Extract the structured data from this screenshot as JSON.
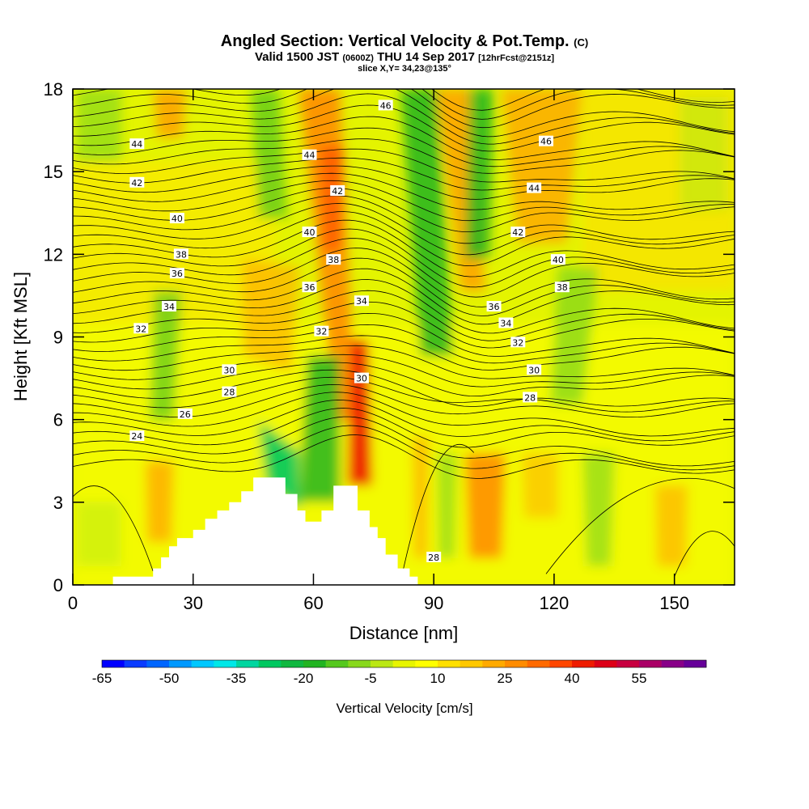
{
  "title": {
    "line1_main": "Angled Section: Vertical Velocity & Pot.Temp.",
    "line1_unit": "(C)",
    "line2_a": "Valid 1500 JST",
    "line2_b": "(0600Z)",
    "line2_c": "THU 14 Sep 2017",
    "line2_d": "[12hrFcst@2151z]",
    "line3": "slice X,Y= 34,23@135°"
  },
  "chart_data": {
    "type": "heatmap",
    "xlabel": "Distance [nm]",
    "ylabel": "Height [Kft MSL]",
    "xlim": [
      0,
      165
    ],
    "ylim": [
      0,
      18
    ],
    "xticks": [
      0,
      30,
      60,
      90,
      120,
      150
    ],
    "yticks": [
      0,
      3,
      6,
      9,
      12,
      15,
      18
    ],
    "colorbar": {
      "label": "Vertical Velocity [cm/s]",
      "tick_labels": [
        "-65",
        "-50",
        "-35",
        "-20",
        "-5",
        "10",
        "25",
        "40",
        "55"
      ],
      "levels": [
        -65,
        -60,
        -55,
        -50,
        -45,
        -40,
        -35,
        -30,
        -25,
        -20,
        -15,
        -10,
        -5,
        0,
        5,
        10,
        15,
        20,
        25,
        30,
        35,
        40,
        45,
        50,
        55,
        60,
        65
      ],
      "colors": [
        "#0000ff",
        "#0a3cff",
        "#0066ff",
        "#0099ff",
        "#00c8ff",
        "#00e8e8",
        "#00d6a0",
        "#00c860",
        "#10b840",
        "#22b422",
        "#55c81e",
        "#88d81c",
        "#bbe814",
        "#e8f500",
        "#ffff00",
        "#ffe000",
        "#ffc800",
        "#ffaa00",
        "#ff8c00",
        "#ff6a00",
        "#ff4600",
        "#ee1c00",
        "#dd0018",
        "#c80040",
        "#aa0066",
        "#880088",
        "#660099"
      ]
    },
    "theta_labels": [
      {
        "text": "46",
        "x": 78,
        "y": 17.4
      },
      {
        "text": "44",
        "x": 16,
        "y": 16.0
      },
      {
        "text": "44",
        "x": 59,
        "y": 15.6
      },
      {
        "text": "46",
        "x": 118,
        "y": 16.1
      },
      {
        "text": "42",
        "x": 16,
        "y": 14.6
      },
      {
        "text": "42",
        "x": 66,
        "y": 14.3
      },
      {
        "text": "44",
        "x": 115,
        "y": 14.4
      },
      {
        "text": "40",
        "x": 26,
        "y": 13.3
      },
      {
        "text": "40",
        "x": 59,
        "y": 12.8
      },
      {
        "text": "42",
        "x": 111,
        "y": 12.8
      },
      {
        "text": "38",
        "x": 27,
        "y": 12.0
      },
      {
        "text": "38",
        "x": 65,
        "y": 11.8
      },
      {
        "text": "40",
        "x": 121,
        "y": 11.8
      },
      {
        "text": "36",
        "x": 26,
        "y": 11.3
      },
      {
        "text": "36",
        "x": 59,
        "y": 10.8
      },
      {
        "text": "38",
        "x": 122,
        "y": 10.8
      },
      {
        "text": "34",
        "x": 72,
        "y": 10.3
      },
      {
        "text": "36",
        "x": 105,
        "y": 10.1
      },
      {
        "text": "34",
        "x": 24,
        "y": 10.1
      },
      {
        "text": "34",
        "x": 108,
        "y": 9.5
      },
      {
        "text": "32",
        "x": 17,
        "y": 9.3
      },
      {
        "text": "32",
        "x": 62,
        "y": 9.2
      },
      {
        "text": "32",
        "x": 111,
        "y": 8.8
      },
      {
        "text": "30",
        "x": 39,
        "y": 7.8
      },
      {
        "text": "30",
        "x": 115,
        "y": 7.8
      },
      {
        "text": "30",
        "x": 72,
        "y": 7.5
      },
      {
        "text": "28",
        "x": 39,
        "y": 7.0
      },
      {
        "text": "28",
        "x": 114,
        "y": 6.8
      },
      {
        "text": "26",
        "x": 28,
        "y": 6.2
      },
      {
        "text": "24",
        "x": 16,
        "y": 5.4
      },
      {
        "text": "28",
        "x": 90,
        "y": 1.0
      }
    ],
    "terrain_profile": [
      [
        0,
        0
      ],
      [
        10,
        0
      ],
      [
        10,
        0.3
      ],
      [
        20,
        0.3
      ],
      [
        20,
        0.6
      ],
      [
        22,
        0.6
      ],
      [
        22,
        1.0
      ],
      [
        24,
        1.0
      ],
      [
        24,
        1.4
      ],
      [
        26,
        1.4
      ],
      [
        26,
        1.7
      ],
      [
        30,
        1.7
      ],
      [
        30,
        2.0
      ],
      [
        33,
        2.0
      ],
      [
        33,
        2.4
      ],
      [
        36,
        2.4
      ],
      [
        36,
        2.7
      ],
      [
        39,
        2.7
      ],
      [
        39,
        3.0
      ],
      [
        42,
        3.0
      ],
      [
        42,
        3.4
      ],
      [
        45,
        3.4
      ],
      [
        45,
        3.9
      ],
      [
        53,
        3.9
      ],
      [
        53,
        3.3
      ],
      [
        56,
        3.3
      ],
      [
        56,
        2.7
      ],
      [
        58,
        2.7
      ],
      [
        58,
        2.3
      ],
      [
        62,
        2.3
      ],
      [
        62,
        2.7
      ],
      [
        65,
        2.7
      ],
      [
        65,
        3.6
      ],
      [
        71,
        3.6
      ],
      [
        71,
        2.7
      ],
      [
        74,
        2.7
      ],
      [
        74,
        2.1
      ],
      [
        76,
        2.1
      ],
      [
        76,
        1.7
      ],
      [
        78,
        1.7
      ],
      [
        78,
        1.1
      ],
      [
        81,
        1.1
      ],
      [
        81,
        0.6
      ],
      [
        84,
        0.6
      ],
      [
        84,
        0.3
      ],
      [
        86,
        0.3
      ],
      [
        86,
        0
      ],
      [
        0,
        0
      ]
    ]
  }
}
